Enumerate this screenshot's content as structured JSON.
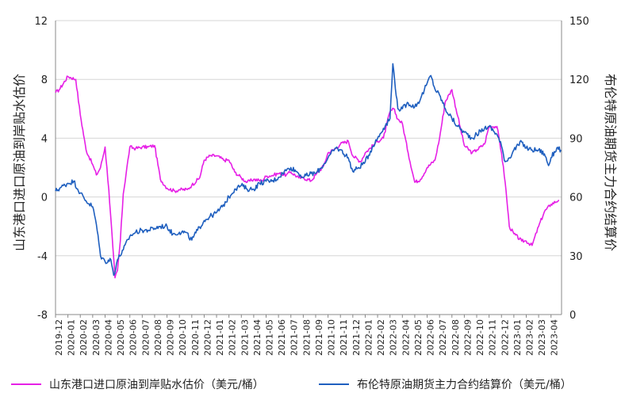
{
  "chart_data": {
    "type": "line",
    "ylabel_left": "山东港口进口原油到岸贴水估价",
    "ylabel_right": "布伦特原油期货主力合约结算价",
    "ylim_left": [
      -8,
      12
    ],
    "ylim_right": [
      0,
      150
    ],
    "yticks_left": [
      "-8",
      "-4",
      "0",
      "4",
      "8",
      "12"
    ],
    "yticks_right": [
      "0",
      "30",
      "60",
      "90",
      "120",
      "150"
    ],
    "x_ticks": [
      "2019-12",
      "2020-01",
      "2020-02",
      "2020-03",
      "2020-04",
      "2020-05",
      "2020-06",
      "2020-07",
      "2020-08",
      "2020-09",
      "2020-10",
      "2020-11",
      "2020-12",
      "2021-01",
      "2021-02",
      "2021-03",
      "2021-04",
      "2021-05",
      "2021-06",
      "2021-07",
      "2021-08",
      "2021-09",
      "2021-10",
      "2021-11",
      "2021-12",
      "2022-01",
      "2022-02",
      "2022-03",
      "2022-04",
      "2022-05",
      "2022-06",
      "2022-07",
      "2022-08",
      "2022-09",
      "2022-10",
      "2022-11",
      "2022-12",
      "2023-01",
      "2023-02",
      "2023-03",
      "2023-04"
    ],
    "grid": "horizontal",
    "legend_position": "bottom",
    "series": [
      {
        "name": "山东港口进口原油到岸贴水估价（美元/桶）",
        "axis": "left",
        "color": "#e620e6",
        "x": [
          "2019-12-01",
          "2019-12-10",
          "2020-01-01",
          "2020-01-20",
          "2020-02-01",
          "2020-02-15",
          "2020-03-01",
          "2020-03-10",
          "2020-03-20",
          "2020-04-01",
          "2020-04-10",
          "2020-04-20",
          "2020-04-25",
          "2020-05-01",
          "2020-05-08",
          "2020-05-15",
          "2020-06-01",
          "2020-06-15",
          "2020-07-01",
          "2020-07-15",
          "2020-08-01",
          "2020-08-15",
          "2020-09-01",
          "2020-09-20",
          "2020-10-01",
          "2020-10-20",
          "2020-11-01",
          "2020-11-20",
          "2020-12-01",
          "2020-12-15",
          "2021-01-01",
          "2021-01-20",
          "2021-02-01",
          "2021-02-15",
          "2021-03-01",
          "2021-03-15",
          "2021-04-01",
          "2021-04-20",
          "2021-05-01",
          "2021-05-20",
          "2021-06-01",
          "2021-06-20",
          "2021-07-01",
          "2021-07-20",
          "2021-08-01",
          "2021-08-20",
          "2021-09-01",
          "2021-09-20",
          "2021-10-01",
          "2021-10-20",
          "2021-11-01",
          "2021-11-20",
          "2021-12-01",
          "2021-12-20",
          "2022-01-01",
          "2022-01-20",
          "2022-02-01",
          "2022-02-15",
          "2022-03-01",
          "2022-03-10",
          "2022-03-20",
          "2022-04-01",
          "2022-04-15",
          "2022-05-01",
          "2022-05-15",
          "2022-06-01",
          "2022-06-20",
          "2022-07-01",
          "2022-07-15",
          "2022-08-01",
          "2022-08-15",
          "2022-09-01",
          "2022-09-20",
          "2022-10-01",
          "2022-10-20",
          "2022-11-01",
          "2022-11-20",
          "2022-12-01",
          "2022-12-10",
          "2022-12-20",
          "2023-01-01",
          "2023-01-20",
          "2023-02-01",
          "2023-02-15",
          "2023-03-01",
          "2023-03-15",
          "2023-04-01",
          "2023-04-20"
        ],
        "y": [
          7.1,
          7.3,
          8.2,
          8.0,
          5.6,
          3.2,
          2.2,
          1.5,
          2.0,
          3.4,
          0.5,
          -3.5,
          -5.5,
          -5.0,
          -3.0,
          0.2,
          3.4,
          3.3,
          3.4,
          3.4,
          3.5,
          1.2,
          0.6,
          0.4,
          0.5,
          0.5,
          0.8,
          1.3,
          2.5,
          2.8,
          2.8,
          2.5,
          2.5,
          1.7,
          1.3,
          1.0,
          1.2,
          1.1,
          1.4,
          1.5,
          1.6,
          1.5,
          1.7,
          1.3,
          1.3,
          1.1,
          1.5,
          2.1,
          3.0,
          3.3,
          3.6,
          3.8,
          2.8,
          2.4,
          3.0,
          3.5,
          3.8,
          4.0,
          5.8,
          6.0,
          5.3,
          5.0,
          3.0,
          1.0,
          1.2,
          2.0,
          2.5,
          4.0,
          6.5,
          7.3,
          5.5,
          3.5,
          3.0,
          3.2,
          3.6,
          4.8,
          4.8,
          3.0,
          1.0,
          -2.0,
          -2.5,
          -3.0,
          -3.0,
          -3.3,
          -2.0,
          -1.0,
          -0.5,
          -0.2
        ]
      },
      {
        "name": "布伦特原油期货主力合约结算价（美元/桶）",
        "axis": "right",
        "color": "#1f5fbf",
        "x": [
          "2019-12-01",
          "2019-12-15",
          "2020-01-01",
          "2020-01-15",
          "2020-02-01",
          "2020-02-15",
          "2020-03-01",
          "2020-03-10",
          "2020-03-20",
          "2020-04-01",
          "2020-04-15",
          "2020-04-22",
          "2020-05-01",
          "2020-05-15",
          "2020-06-01",
          "2020-06-15",
          "2020-07-01",
          "2020-07-15",
          "2020-08-01",
          "2020-08-15",
          "2020-09-01",
          "2020-09-15",
          "2020-10-01",
          "2020-10-15",
          "2020-11-01",
          "2020-11-15",
          "2020-12-01",
          "2020-12-15",
          "2021-01-01",
          "2021-01-15",
          "2021-02-01",
          "2021-02-15",
          "2021-03-01",
          "2021-03-15",
          "2021-04-01",
          "2021-04-15",
          "2021-05-01",
          "2021-05-15",
          "2021-06-01",
          "2021-06-15",
          "2021-07-01",
          "2021-07-15",
          "2021-08-01",
          "2021-08-20",
          "2021-09-01",
          "2021-09-15",
          "2021-10-01",
          "2021-10-20",
          "2021-11-01",
          "2021-11-20",
          "2021-12-01",
          "2021-12-15",
          "2022-01-01",
          "2022-01-20",
          "2022-02-01",
          "2022-02-15",
          "2022-03-01",
          "2022-03-08",
          "2022-03-20",
          "2022-04-01",
          "2022-04-15",
          "2022-05-01",
          "2022-05-15",
          "2022-06-01",
          "2022-06-10",
          "2022-06-20",
          "2022-07-01",
          "2022-07-15",
          "2022-08-01",
          "2022-08-15",
          "2022-09-01",
          "2022-09-20",
          "2022-10-01",
          "2022-10-20",
          "2022-11-01",
          "2022-11-20",
          "2022-12-01",
          "2022-12-10",
          "2022-12-20",
          "2023-01-01",
          "2023-01-20",
          "2023-02-01",
          "2023-02-15",
          "2023-03-01",
          "2023-03-15",
          "2023-03-25",
          "2023-04-01",
          "2023-04-15",
          "2023-04-25"
        ],
        "y": [
          63,
          65,
          67,
          68,
          62,
          58,
          55,
          46,
          30,
          27,
          28,
          20,
          28,
          33,
          40,
          42,
          43,
          43,
          44,
          45,
          45,
          41,
          42,
          42,
          38,
          43,
          48,
          50,
          52,
          55,
          60,
          64,
          66,
          64,
          64,
          67,
          68,
          68,
          70,
          73,
          75,
          73,
          70,
          72,
          72,
          75,
          80,
          85,
          84,
          80,
          73,
          75,
          78,
          86,
          90,
          95,
          100,
          128,
          105,
          105,
          108,
          106,
          110,
          118,
          122,
          115,
          112,
          105,
          100,
          96,
          93,
          90,
          92,
          95,
          96,
          92,
          86,
          78,
          80,
          84,
          88,
          85,
          84,
          84,
          82,
          76,
          80,
          85,
          84
        ]
      }
    ]
  }
}
